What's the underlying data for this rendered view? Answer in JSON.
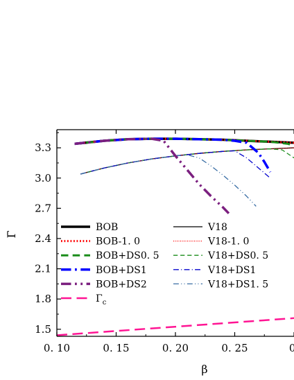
{
  "chart_data": {
    "type": "line",
    "xlabel": "β",
    "ylabel": "Γ̄",
    "xlim": [
      0.1,
      0.3
    ],
    "ylim": [
      1.43,
      3.48
    ],
    "xticks": [
      0.1,
      0.15,
      0.2,
      0.25,
      0.3
    ],
    "xtick_labels": [
      "0. 10",
      "0. 15",
      "0. 20",
      "0. 25",
      "0."
    ],
    "yticks": [
      1.5,
      1.8,
      2.1,
      2.4,
      2.7,
      3.0,
      3.3
    ],
    "ytick_labels": [
      "1.5",
      "1.8",
      "2.1",
      "2.4",
      "2.7",
      "3.0",
      "3.3"
    ],
    "grid": false,
    "legend_position": "bottom-left (two columns)",
    "series": [
      {
        "name": "BOB",
        "color": "#000000",
        "dash": "solid",
        "width": 3.5,
        "x": [
          0.115,
          0.14,
          0.16,
          0.18,
          0.2,
          0.22,
          0.24,
          0.26,
          0.28,
          0.3
        ],
        "y": [
          3.34,
          3.37,
          3.385,
          3.39,
          3.39,
          3.385,
          3.38,
          3.37,
          3.36,
          3.35
        ]
      },
      {
        "name": "BOB-1. 0",
        "color": "#ff0000",
        "dash": "dotted",
        "width": 3,
        "x": [
          0.115,
          0.14,
          0.16,
          0.18,
          0.2,
          0.22,
          0.24,
          0.26,
          0.28,
          0.3
        ],
        "y": [
          3.34,
          3.37,
          3.385,
          3.39,
          3.39,
          3.385,
          3.38,
          3.37,
          3.36,
          3.35
        ]
      },
      {
        "name": "BOB+DS0. 5",
        "color": "#1a8c1a",
        "dash": "dashed",
        "width": 3,
        "x": [
          0.115,
          0.14,
          0.16,
          0.18,
          0.2,
          0.22,
          0.24,
          0.26,
          0.28,
          0.295,
          0.3
        ],
        "y": [
          3.34,
          3.37,
          3.385,
          3.39,
          3.39,
          3.385,
          3.38,
          3.37,
          3.36,
          3.34,
          3.32
        ]
      },
      {
        "name": "BOB+DS1",
        "color": "#0000ff",
        "dash": "dashdot",
        "width": 3.5,
        "x": [
          0.115,
          0.14,
          0.16,
          0.18,
          0.2,
          0.22,
          0.24,
          0.25,
          0.26,
          0.27,
          0.275,
          0.28
        ],
        "y": [
          3.34,
          3.37,
          3.385,
          3.39,
          3.39,
          3.385,
          3.38,
          3.37,
          3.35,
          3.25,
          3.16,
          3.06
        ]
      },
      {
        "name": "BOB+DS2",
        "color": "#7b1f7f",
        "dash": "dashdotdot",
        "width": 3.5,
        "x": [
          0.115,
          0.14,
          0.16,
          0.18,
          0.19,
          0.2,
          0.21,
          0.22,
          0.23,
          0.24,
          0.245
        ],
        "y": [
          3.34,
          3.37,
          3.385,
          3.39,
          3.37,
          3.22,
          3.08,
          2.94,
          2.82,
          2.71,
          2.65
        ]
      },
      {
        "name": "V18",
        "color": "#000000",
        "dash": "solid",
        "width": 1.3,
        "x": [
          0.12,
          0.14,
          0.16,
          0.18,
          0.2,
          0.22,
          0.24,
          0.26,
          0.28,
          0.3
        ],
        "y": [
          3.04,
          3.1,
          3.15,
          3.19,
          3.22,
          3.245,
          3.265,
          3.28,
          3.29,
          3.3
        ]
      },
      {
        "name": "V18-1. 0",
        "color": "#ff0000",
        "dash": "dotted",
        "width": 1.3,
        "x": [
          0.12,
          0.14,
          0.16,
          0.18,
          0.2,
          0.22,
          0.24,
          0.26,
          0.28,
          0.3
        ],
        "y": [
          3.04,
          3.1,
          3.15,
          3.19,
          3.22,
          3.245,
          3.265,
          3.28,
          3.29,
          3.3
        ]
      },
      {
        "name": "V18+DS0. 5",
        "color": "#1a8c1a",
        "dash": "dashed",
        "width": 1.3,
        "x": [
          0.12,
          0.14,
          0.16,
          0.18,
          0.2,
          0.22,
          0.24,
          0.26,
          0.28,
          0.29,
          0.295,
          0.3
        ],
        "y": [
          3.04,
          3.1,
          3.15,
          3.19,
          3.22,
          3.245,
          3.265,
          3.28,
          3.29,
          3.28,
          3.24,
          3.2
        ]
      },
      {
        "name": "V18+DS1",
        "color": "#0000cc",
        "dash": "dashdot",
        "width": 1.3,
        "x": [
          0.12,
          0.14,
          0.16,
          0.18,
          0.2,
          0.22,
          0.24,
          0.25,
          0.26,
          0.27,
          0.28
        ],
        "y": [
          3.04,
          3.1,
          3.15,
          3.19,
          3.22,
          3.245,
          3.265,
          3.27,
          3.2,
          3.1,
          3.0
        ]
      },
      {
        "name": "V18+DS1. 5",
        "color": "#3a6ea5",
        "dash": "dashdotdot",
        "width": 1.3,
        "x": [
          0.12,
          0.14,
          0.16,
          0.18,
          0.2,
          0.21,
          0.22,
          0.23,
          0.24,
          0.25,
          0.26,
          0.268
        ],
        "y": [
          3.04,
          3.1,
          3.15,
          3.19,
          3.22,
          3.23,
          3.2,
          3.12,
          3.03,
          2.93,
          2.82,
          2.72
        ]
      },
      {
        "name": "Γc",
        "color": "#ff1493",
        "dash": "longdash",
        "width": 2.5,
        "x": [
          0.1,
          0.3
        ],
        "y": [
          1.44,
          1.61
        ]
      }
    ],
    "legend_columns": [
      [
        "BOB",
        "BOB-1. 0",
        "BOB+DS0. 5",
        "BOB+DS1",
        "BOB+DS2",
        "Γc"
      ],
      [
        "V18",
        "V18-1. 0",
        "V18+DS0. 5",
        "V18+DS1",
        "V18+DS1. 5"
      ]
    ]
  }
}
